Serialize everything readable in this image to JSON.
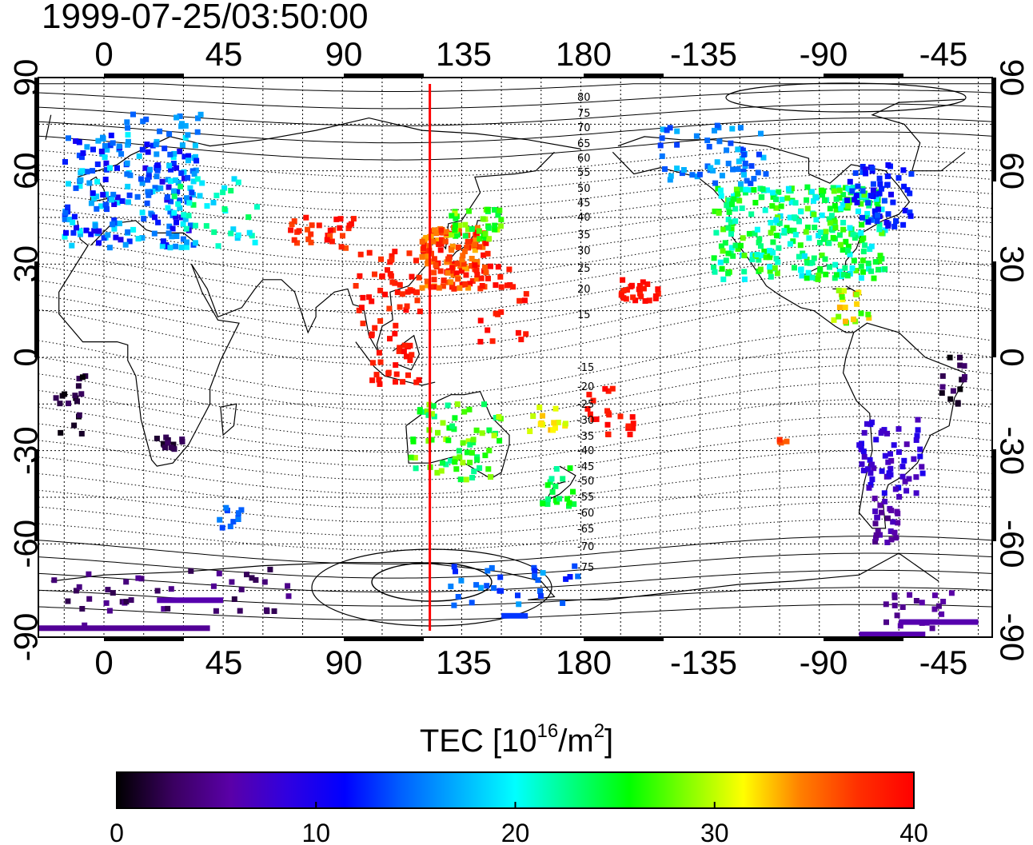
{
  "title": "1999-07-25/03:50:00",
  "map": {
    "lon_ticks_top": [
      "0",
      "45",
      "90",
      "135",
      "180",
      "-135",
      "-90",
      "-45"
    ],
    "lon_ticks_bottom": [
      "0",
      "45",
      "90",
      "135",
      "180",
      "-135",
      "-90",
      "-45"
    ],
    "lat_ticks_left": [
      "90",
      "60",
      "30",
      "0",
      "-30",
      "-60",
      "-90"
    ],
    "lat_ticks_right": [
      "90",
      "60",
      "30",
      "0",
      "-30",
      "-60",
      "-90"
    ],
    "magnetic_lat_labels": [
      "80",
      "75",
      "70",
      "65",
      "60",
      "55",
      "50",
      "45",
      "40",
      "35",
      "30",
      "25",
      "20",
      "15",
      "-15",
      "-20",
      "-25",
      "-30",
      "-35",
      "-40",
      "-45",
      "-50",
      "-55",
      "-60",
      "-65",
      "-70",
      "-75"
    ],
    "local_time_line_color": "#ff0000",
    "local_time_line_lon": 123
  },
  "colorbar": {
    "title_main": "TEC  [10",
    "title_exp1": "16",
    "title_mid": "/m",
    "title_exp2": "2",
    "title_end": "]",
    "ticks": [
      "0",
      "10",
      "20",
      "30",
      "40"
    ],
    "min": 0,
    "max": 40,
    "colors": [
      "#000000",
      "#3a0060",
      "#5a00a8",
      "#3000e0",
      "#0000ff",
      "#0060ff",
      "#00b0ff",
      "#00ffff",
      "#00ff80",
      "#00ff00",
      "#80ff00",
      "#ffff00",
      "#ff8000",
      "#ff3000",
      "#ff0000"
    ]
  }
}
